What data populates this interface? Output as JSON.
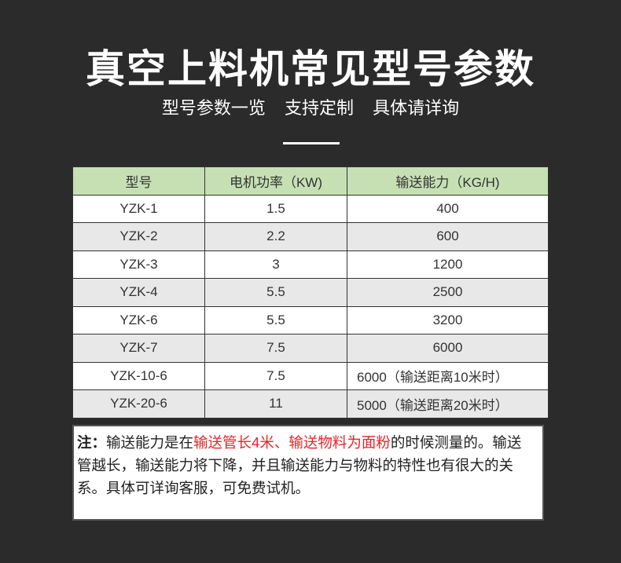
{
  "title": "真空上料机常见型号参数",
  "subtitle": [
    "型号参数一览",
    "支持定制",
    "具体请详询"
  ],
  "table": {
    "headers": [
      "型号",
      "电机功率（KW)",
      "输送能力（KG/H)"
    ],
    "rows": [
      [
        "YZK-1",
        "1.5",
        "400"
      ],
      [
        "YZK-2",
        "2.2",
        "600"
      ],
      [
        "YZK-3",
        "3",
        "1200"
      ],
      [
        "YZK-4",
        "5.5",
        "2500"
      ],
      [
        "YZK-6",
        "5.5",
        "3200"
      ],
      [
        "YZK-7",
        "7.5",
        "6000"
      ],
      [
        "YZK-10-6",
        "7.5",
        "6000（输送距离10米时）"
      ],
      [
        "YZK-20-6",
        "11",
        "5000（输送距离20米时）"
      ]
    ]
  },
  "note": {
    "label": "注：",
    "part1": "输送能力是在",
    "red1": "输送管长4米",
    "sep": "、",
    "red2": "输送物料为面粉",
    "part2": "的时候测量的。输送管越长，输送能力将下降，并且输送能力与物料的特性也有很大的关系。具体可详询客服，可免费试机。"
  },
  "colors": {
    "background": "#2b2b2b",
    "header_bg": "#c6e0b4",
    "stripe": "#e8e8e8",
    "highlight": "#e8232a"
  }
}
